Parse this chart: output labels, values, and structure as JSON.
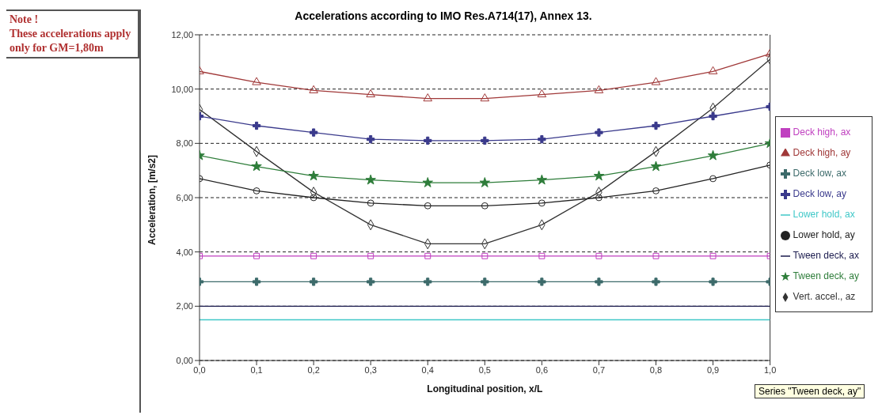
{
  "chart_data": {
    "type": "line",
    "title": "Accelerations according to IMO Res.A714(17), Annex 13.",
    "xlabel": "Longitudinal position,  x/L",
    "ylabel": "Acceleration, [m/s2]",
    "annotations": [
      "Note !",
      "These accelerations apply only for GM=1,80m",
      "Series \"Tween deck, ay\""
    ],
    "x": [
      0,
      0.1,
      0.2,
      0.3,
      0.4,
      0.5,
      0.6,
      0.7,
      0.8,
      0.9,
      1.0
    ],
    "xlim": [
      0,
      1
    ],
    "xticks": [
      {
        "value": 0,
        "label": "0,0"
      },
      {
        "value": 0.1,
        "label": "0,1"
      },
      {
        "value": 0.2,
        "label": "0,2"
      },
      {
        "value": 0.3,
        "label": "0,3"
      },
      {
        "value": 0.4,
        "label": "0,4"
      },
      {
        "value": 0.5,
        "label": "0,5"
      },
      {
        "value": 0.6,
        "label": "0,6"
      },
      {
        "value": 0.7,
        "label": "0,7"
      },
      {
        "value": 0.8,
        "label": "0,8"
      },
      {
        "value": 0.9,
        "label": "0,9"
      },
      {
        "value": 1,
        "label": "1,0"
      }
    ],
    "ylim": [
      0,
      12
    ],
    "yticks": [
      {
        "value": 0,
        "label": "0,00"
      },
      {
        "value": 2,
        "label": "2,00"
      },
      {
        "value": 4,
        "label": "4,00"
      },
      {
        "value": 6,
        "label": "6,00"
      },
      {
        "value": 8,
        "label": "8,00"
      },
      {
        "value": 10,
        "label": "10,00"
      },
      {
        "value": 12,
        "label": "12,00"
      }
    ],
    "grid": "y",
    "legend": "right",
    "line_style": "solid",
    "series": [
      {
        "name": "Vert. accel., az",
        "color": "#333333",
        "marker": "diamond",
        "values": [
          9.25,
          7.7,
          6.2,
          5.0,
          4.3,
          4.3,
          5.0,
          6.2,
          7.7,
          9.3,
          11.1
        ]
      },
      {
        "name": "Deck high, ay",
        "color": "#a03838",
        "marker": "triangle",
        "values": [
          10.65,
          10.25,
          9.95,
          9.8,
          9.65,
          9.65,
          9.8,
          9.95,
          10.25,
          10.65,
          11.3
        ]
      },
      {
        "name": "Deck low, ay",
        "color": "#3a3a8c",
        "marker": "cross",
        "values": [
          9.0,
          8.65,
          8.4,
          8.15,
          8.1,
          8.1,
          8.15,
          8.4,
          8.65,
          9.0,
          9.35
        ]
      },
      {
        "name": "Tween deck, ay",
        "color": "#2e7d3a",
        "marker": "star",
        "values": [
          7.55,
          7.15,
          6.8,
          6.65,
          6.55,
          6.55,
          6.65,
          6.8,
          7.15,
          7.55,
          8.0
        ]
      },
      {
        "name": "Lower hold, ay",
        "color": "#222222",
        "marker": "circle",
        "values": [
          6.7,
          6.25,
          6.0,
          5.8,
          5.7,
          5.7,
          5.8,
          6.0,
          6.25,
          6.7,
          7.2
        ]
      },
      {
        "name": "Deck high, ax",
        "color": "#c040c0",
        "marker": "square",
        "values": [
          3.85,
          3.85,
          3.85,
          3.85,
          3.85,
          3.85,
          3.85,
          3.85,
          3.85,
          3.85,
          3.85
        ]
      },
      {
        "name": "Deck low, ax",
        "color": "#3d6b6b",
        "marker": "cross",
        "values": [
          2.9,
          2.9,
          2.9,
          2.9,
          2.9,
          2.9,
          2.9,
          2.9,
          2.9,
          2.9,
          2.9
        ]
      },
      {
        "name": "Tween deck, ax",
        "color": "#1a1a4d",
        "marker": "none",
        "values": [
          2.0,
          2.0,
          2.0,
          2.0,
          2.0,
          2.0,
          2.0,
          2.0,
          2.0,
          2.0,
          2.0
        ]
      },
      {
        "name": "Lower hold, ax",
        "color": "#40c8c8",
        "marker": "none",
        "values": [
          1.5,
          1.5,
          1.5,
          1.5,
          1.5,
          1.5,
          1.5,
          1.5,
          1.5,
          1.5,
          1.5
        ]
      }
    ]
  }
}
